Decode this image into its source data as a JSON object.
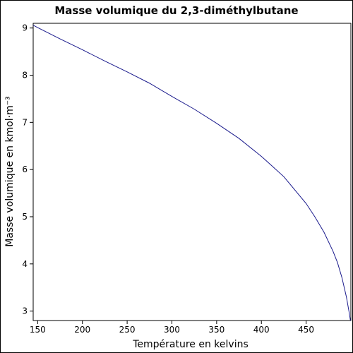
{
  "chart_data": {
    "type": "line",
    "title": "Masse volumique du 2,3-diméthylbutane",
    "xlabel": "Température en kelvins",
    "ylabel": "Masse volumique en kmol·m⁻³",
    "xlim": [
      145,
      500
    ],
    "ylim": [
      2.8,
      9.1
    ],
    "x_ticks": [
      150,
      200,
      250,
      300,
      350,
      400,
      450
    ],
    "y_ticks": [
      3,
      4,
      5,
      6,
      7,
      8,
      9
    ],
    "grid": false,
    "line_color": "#1a1a8c",
    "series": [
      {
        "x": [
          145,
          150,
          175,
          200,
          225,
          250,
          275,
          300,
          325,
          350,
          375,
          400,
          425,
          450,
          460,
          470,
          480,
          485,
          490,
          495,
          498,
          499.5
        ],
        "values": [
          9.06,
          9.01,
          8.77,
          8.54,
          8.3,
          8.07,
          7.83,
          7.55,
          7.28,
          6.98,
          6.66,
          6.28,
          5.85,
          5.28,
          4.99,
          4.67,
          4.27,
          4.03,
          3.71,
          3.3,
          2.98,
          2.8
        ]
      }
    ]
  }
}
